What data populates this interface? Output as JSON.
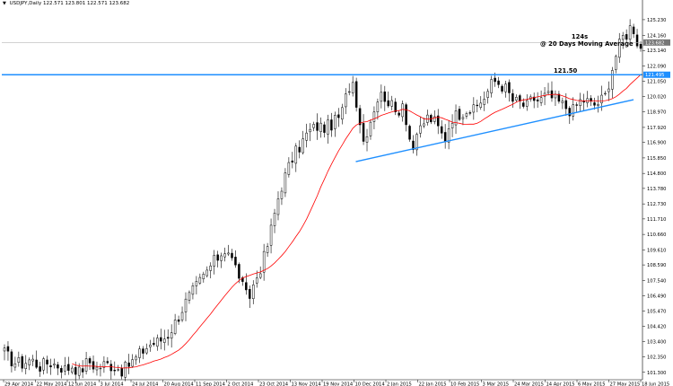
{
  "header": {
    "symbol_line": "USDJPY,Daily",
    "ohlc": "122.571 123.801 122.571 123.682"
  },
  "annotations": {
    "target_value": "124s",
    "target_note": "@ 20 Days Moving Average",
    "level_label": "121.50"
  },
  "colors": {
    "candle": "#000000",
    "moving_average": "#ff0000",
    "trend_lines": "#1e8fff",
    "price_tag": "#1e8fff",
    "grid_axis": "#000000"
  },
  "chart_data": {
    "type": "candlestick",
    "symbol": "USDJPY",
    "timeframe": "Daily",
    "indicators": [
      "20 Days Moving Average"
    ],
    "ylim": [
      100.8,
      126.2
    ],
    "y_ticks": [
      "125.230",
      "124.160",
      "123.140",
      "122.090",
      "121.050",
      "120.020",
      "118.970",
      "117.920",
      "116.900",
      "115.850",
      "114.800",
      "113.780",
      "112.730",
      "111.710",
      "110.660",
      "109.610",
      "108.590",
      "107.540",
      "106.490",
      "105.470",
      "104.420",
      "103.400",
      "102.350",
      "101.300"
    ],
    "x_ticks": [
      "29 Apr 2014",
      "22 May 2014",
      "12 Jun 2014",
      "3 Jul 2014",
      "24 Jul 2014",
      "20 Aug 2014",
      "11 Sep 2014",
      "2 Oct 2014",
      "23 Oct 2014",
      "13 Nov 2014",
      "19 Nov 2014",
      "10 Dec 2014",
      "2 Jan 2015",
      "22 Jan 2015",
      "10 Feb 2015",
      "3 Mar 2015",
      "24 Mar 2015",
      "14 Apr 2015",
      "6 May 2015",
      "27 May 2015",
      "18 Jun 2015"
    ],
    "current_price": "123.682",
    "current_price_value": 123.682,
    "horizontal_level": "121.495",
    "horizontal_level_value": 121.495,
    "support_trendline": {
      "from": [
        "10 Dec 2014",
        115.6
      ],
      "to": [
        "18 Jun 2015",
        119.8
      ]
    },
    "close_path": [
      [
        0,
        102.6
      ],
      [
        8,
        102.0
      ],
      [
        16,
        101.9
      ],
      [
        24,
        102.2
      ],
      [
        32,
        101.7
      ],
      [
        40,
        102.0
      ],
      [
        48,
        101.8
      ],
      [
        56,
        101.5
      ],
      [
        62,
        101.8
      ],
      [
        68,
        101.3
      ],
      [
        76,
        102.1
      ],
      [
        84,
        101.6
      ],
      [
        92,
        101.9
      ],
      [
        100,
        101.7
      ],
      [
        108,
        101.4
      ],
      [
        114,
        101.9
      ],
      [
        120,
        102.3
      ],
      [
        126,
        102.8
      ],
      [
        132,
        103.2
      ],
      [
        140,
        103.4
      ],
      [
        148,
        103.8
      ],
      [
        156,
        104.8
      ],
      [
        164,
        106.0
      ],
      [
        172,
        106.9
      ],
      [
        180,
        107.7
      ],
      [
        188,
        108.6
      ],
      [
        196,
        109.3
      ],
      [
        202,
        109.8
      ],
      [
        208,
        108.7
      ],
      [
        214,
        107.8
      ],
      [
        218,
        106.6
      ],
      [
        222,
        106.3
      ],
      [
        226,
        107.2
      ],
      [
        232,
        108.3
      ],
      [
        238,
        109.6
      ],
      [
        244,
        111.6
      ],
      [
        250,
        113.6
      ],
      [
        256,
        114.8
      ],
      [
        262,
        115.9
      ],
      [
        268,
        116.6
      ],
      [
        276,
        117.6
      ],
      [
        284,
        118.0
      ],
      [
        292,
        117.9
      ],
      [
        300,
        118.3
      ],
      [
        306,
        118.8
      ],
      [
        312,
        120.5
      ],
      [
        316,
        121.2
      ],
      [
        320,
        119.6
      ],
      [
        326,
        117.0
      ],
      [
        332,
        118.3
      ],
      [
        338,
        119.8
      ],
      [
        344,
        120.2
      ],
      [
        350,
        119.6
      ],
      [
        356,
        118.8
      ],
      [
        362,
        119.7
      ],
      [
        368,
        117.2
      ],
      [
        372,
        116.4
      ],
      [
        378,
        117.9
      ],
      [
        384,
        118.6
      ],
      [
        390,
        118.4
      ],
      [
        396,
        117.6
      ],
      [
        400,
        117.1
      ],
      [
        406,
        118.6
      ],
      [
        414,
        118.9
      ],
      [
        420,
        119.2
      ],
      [
        426,
        119.0
      ],
      [
        432,
        119.6
      ],
      [
        438,
        120.2
      ],
      [
        444,
        121.1
      ],
      [
        450,
        120.9
      ],
      [
        456,
        120.5
      ],
      [
        462,
        119.7
      ],
      [
        468,
        119.6
      ],
      [
        474,
        119.3
      ],
      [
        480,
        119.9
      ],
      [
        486,
        119.7
      ],
      [
        492,
        120.1
      ],
      [
        498,
        119.9
      ],
      [
        504,
        119.6
      ],
      [
        510,
        119.3
      ],
      [
        516,
        119.0
      ],
      [
        522,
        119.7
      ],
      [
        528,
        119.8
      ],
      [
        534,
        119.4
      ],
      [
        540,
        119.6
      ],
      [
        546,
        120.1
      ],
      [
        550,
        121.3
      ],
      [
        554,
        122.5
      ],
      [
        558,
        123.4
      ],
      [
        562,
        124.1
      ],
      [
        566,
        124.3
      ],
      [
        570,
        125.0
      ],
      [
        572,
        124.5
      ],
      [
        575,
        123.7
      ],
      [
        578,
        123.3
      ]
    ]
  }
}
